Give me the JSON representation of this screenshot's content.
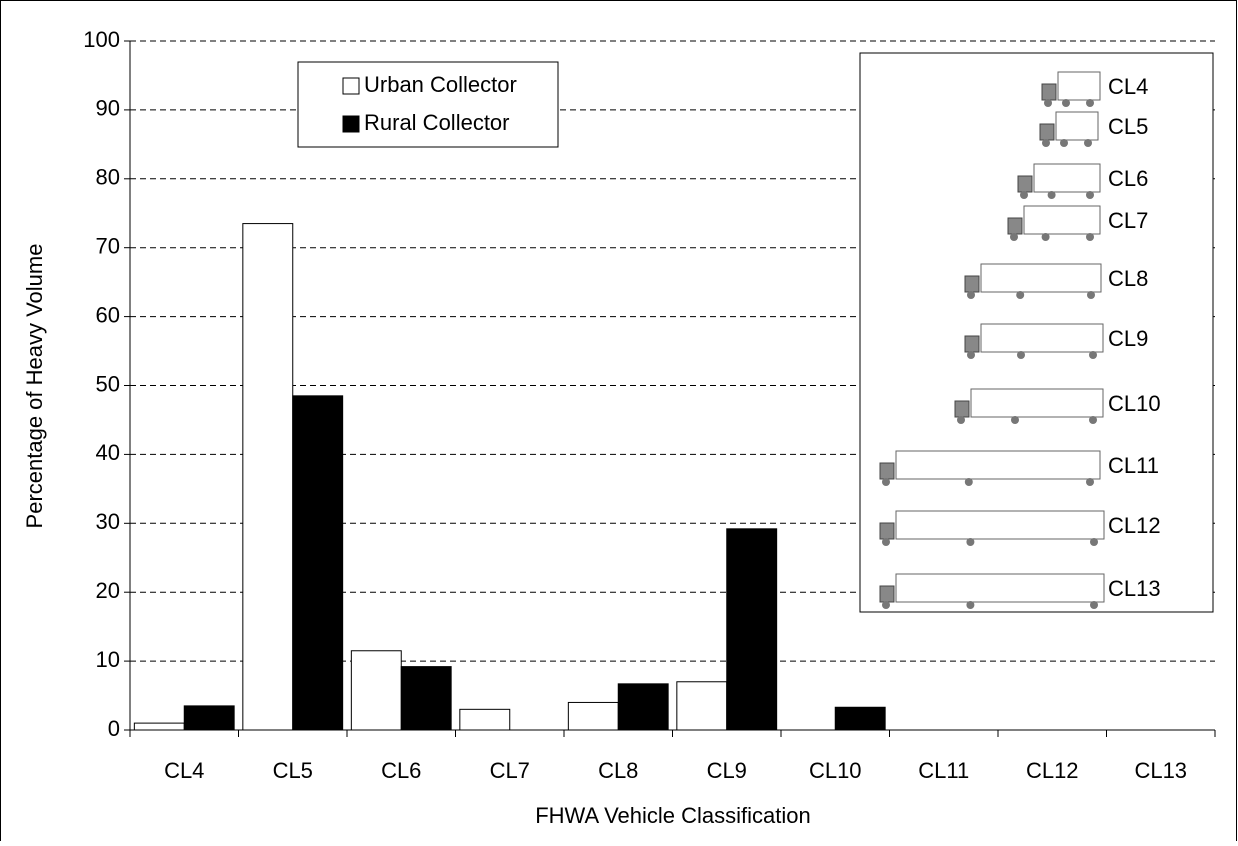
{
  "chart_data": {
    "type": "bar",
    "x_label": "FHWA Vehicle Classification",
    "y_label": "Percentage of Heavy Volume",
    "categories": [
      "CL4",
      "CL5",
      "CL6",
      "CL7",
      "CL8",
      "CL9",
      "CL10",
      "CL11",
      "CL12",
      "CL13"
    ],
    "series": [
      {
        "name": "Urban Collector",
        "color": "#ffffff",
        "values": [
          1,
          73.5,
          11.5,
          3,
          4,
          7,
          0,
          0,
          0,
          0
        ]
      },
      {
        "name": "Rural Collector",
        "color": "#000000",
        "values": [
          3.5,
          48.5,
          9.2,
          0,
          6.7,
          29.2,
          3.3,
          0,
          0,
          0
        ]
      }
    ],
    "ylim": [
      0,
      100
    ],
    "yticks": [
      0,
      10,
      20,
      30,
      40,
      50,
      60,
      70,
      80,
      90,
      100
    ],
    "grid": true,
    "legend": "upper left",
    "annotations": [
      "CL4",
      "CL5",
      "CL6",
      "CL7",
      "CL8",
      "CL9",
      "CL10",
      "CL11",
      "CL12",
      "CL13"
    ]
  }
}
